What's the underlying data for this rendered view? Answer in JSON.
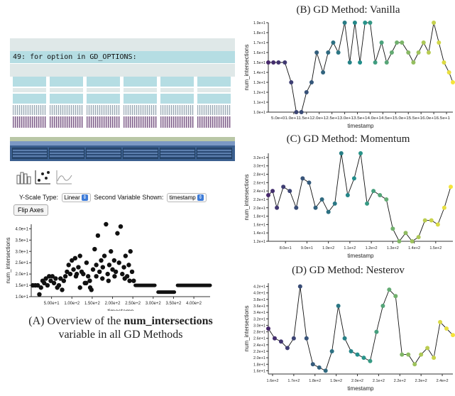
{
  "code_line": "49: for option in GD_OPTIONS:",
  "controls": {
    "yscale_label": "Y-Scale Type:",
    "yscale_value": "Linear",
    "second_var_label": "Second Variable Shown:",
    "second_var_value": "timestamp",
    "flip_label": "Flip Axes"
  },
  "caption": {
    "prefix": "(A) Overview of the ",
    "bold": "num_intersections",
    "line2": "variable in all GD Methods"
  },
  "colors": {
    "panel_teal": "#b5dde3",
    "panel_gray": "#dfe8e8",
    "panel_purple": "#7b5c88",
    "panel_blue": "#3b5f8f",
    "accent_blue": "#3d7bd8"
  },
  "chart_data": [
    {
      "type": "scatter",
      "id": "overview",
      "title": "",
      "xlabel": "timestamp",
      "ylabel": "num_intersections",
      "xlim": [
        0,
        440
      ],
      "ylim": [
        1.0,
        4.2
      ],
      "xticks": [
        {
          "v": 50,
          "l": "5.00e+1"
        },
        {
          "v": 100,
          "l": "1.00e+2"
        },
        {
          "v": 150,
          "l": "1.50e+2"
        },
        {
          "v": 200,
          "l": "2.00e+2"
        },
        {
          "v": 250,
          "l": "2.50e+2"
        },
        {
          "v": 300,
          "l": "3.00e+2"
        },
        {
          "v": 350,
          "l": "3.50e+2"
        },
        {
          "v": 400,
          "l": "4.00e+2"
        }
      ],
      "yticks": [
        {
          "v": 1.0,
          "l": "1.0e+1"
        },
        {
          "v": 1.5,
          "l": "1.5e+1"
        },
        {
          "v": 2.0,
          "l": "2.0e+1"
        },
        {
          "v": 2.5,
          "l": "2.5e+1"
        },
        {
          "v": 3.0,
          "l": "3.0e+1"
        },
        {
          "v": 3.5,
          "l": "3.5e+1"
        },
        {
          "v": 4.0,
          "l": "4.0e+1"
        }
      ],
      "points": [
        [
          4,
          1.5
        ],
        [
          10,
          1.5
        ],
        [
          16,
          1.5
        ],
        [
          20,
          1.1
        ],
        [
          24,
          1.4
        ],
        [
          28,
          1.7
        ],
        [
          32,
          1.6
        ],
        [
          36,
          1.8
        ],
        [
          40,
          1.5
        ],
        [
          44,
          1.9
        ],
        [
          48,
          1.7
        ],
        [
          52,
          1.9
        ],
        [
          56,
          1.6
        ],
        [
          60,
          1.8
        ],
        [
          64,
          1.4
        ],
        [
          68,
          1.5
        ],
        [
          72,
          1.8
        ],
        [
          76,
          1.3
        ],
        [
          80,
          1.7
        ],
        [
          84,
          1.9
        ],
        [
          88,
          2.1
        ],
        [
          92,
          2.4
        ],
        [
          96,
          2.0
        ],
        [
          100,
          2.6
        ],
        [
          104,
          2.2
        ],
        [
          108,
          2.7
        ],
        [
          112,
          2.0
        ],
        [
          116,
          2.3
        ],
        [
          120,
          2.8
        ],
        [
          124,
          2.1
        ],
        [
          128,
          2.0
        ],
        [
          132,
          1.6
        ],
        [
          136,
          2.5
        ],
        [
          140,
          1.9
        ],
        [
          144,
          1.7
        ],
        [
          148,
          1.3
        ],
        [
          152,
          2.2
        ],
        [
          156,
          3.1
        ],
        [
          160,
          2.4
        ],
        [
          164,
          3.7
        ],
        [
          168,
          2.1
        ],
        [
          172,
          2.6
        ],
        [
          176,
          2.3
        ],
        [
          180,
          2.8
        ],
        [
          184,
          4.2
        ],
        [
          188,
          2.0
        ],
        [
          192,
          2.4
        ],
        [
          196,
          3.0
        ],
        [
          200,
          2.2
        ],
        [
          204,
          2.6
        ],
        [
          208,
          2.1
        ],
        [
          212,
          3.8
        ],
        [
          216,
          2.5
        ],
        [
          220,
          4.1
        ],
        [
          224,
          2.0
        ],
        [
          228,
          2.3
        ],
        [
          232,
          2.8
        ],
        [
          236,
          1.9
        ],
        [
          240,
          2.4
        ],
        [
          244,
          3.0
        ],
        [
          248,
          2.1
        ],
        [
          252,
          1.7
        ],
        [
          110,
          1.9
        ],
        [
          120,
          1.4
        ],
        [
          135,
          1.6
        ],
        [
          145,
          1.4
        ],
        [
          160,
          1.9
        ],
        [
          175,
          1.8
        ],
        [
          190,
          1.7
        ],
        [
          205,
          1.9
        ],
        [
          230,
          1.8
        ],
        [
          242,
          1.7
        ]
      ],
      "segments": [
        {
          "x0": 256,
          "x1": 304,
          "y": 1.5
        },
        {
          "x0": 312,
          "x1": 352,
          "y": 1.2
        },
        {
          "x0": 360,
          "x1": 440,
          "y": 1.5
        }
      ],
      "color": "#111111"
    },
    {
      "type": "line",
      "id": "vanilla",
      "title": "(B) GD Method: Vanilla",
      "xlabel": "timestamp",
      "ylabel": "num_intersections",
      "xlim": [
        3,
        17.5
      ],
      "ylim": [
        1.0,
        1.9
      ],
      "xticks": [
        {
          "v": 5,
          "l": "5.0e+0"
        },
        {
          "v": 6,
          "l": "1.0e+1"
        },
        {
          "v": 7,
          "l": "1.5e+1"
        },
        {
          "v": 8,
          "l": "2.0e+1"
        },
        {
          "v": 9,
          "l": "2.5e+1"
        },
        {
          "v": 10,
          "l": "3.0e+1"
        },
        {
          "v": 11,
          "l": "3.5e+1"
        },
        {
          "v": 12,
          "l": "4.0e+1"
        },
        {
          "v": 13,
          "l": "4.5e+1"
        },
        {
          "v": 14,
          "l": "5.0e+1"
        },
        {
          "v": 15,
          "l": "5.5e+1"
        },
        {
          "v": 16,
          "l": "6.0e+1"
        },
        {
          "v": 17,
          "l": "6.5e+1"
        }
      ],
      "xticklabel_row": "5.0e+01.0e+11.5e+12.0e+12.5e+13.0e+13.5e+14.0e+14.5e+15.0e+15.5e+16.0e+16.5e+1",
      "yticks": [
        {
          "v": 1.0,
          "l": "1.0e+1"
        },
        {
          "v": 1.1,
          "l": "1.1e+1"
        },
        {
          "v": 1.2,
          "l": "1.2e+1"
        },
        {
          "v": 1.3,
          "l": "1.3e+1"
        },
        {
          "v": 1.4,
          "l": "1.4e+1"
        },
        {
          "v": 1.5,
          "l": "1.5e+1"
        },
        {
          "v": 1.6,
          "l": "1.6e+1"
        },
        {
          "v": 1.7,
          "l": "1.7e+1"
        },
        {
          "v": 1.8,
          "l": "1.8e+1"
        },
        {
          "v": 1.9,
          "l": "1.9e+1"
        }
      ],
      "x": [
        3,
        3.4,
        3.8,
        4.3,
        4.8,
        5.2,
        5.6,
        6.0,
        6.4,
        6.8,
        7.3,
        7.7,
        8.1,
        8.5,
        9.0,
        9.4,
        9.8,
        10.2,
        10.6,
        11.0,
        11.4,
        11.9,
        12.3,
        12.7,
        13.1,
        13.5,
        14.0,
        14.4,
        14.8,
        15.2,
        15.6,
        16.0,
        16.4,
        16.8,
        17.2,
        17.5
      ],
      "values": [
        1.5,
        1.5,
        1.5,
        1.5,
        1.3,
        1.0,
        1.0,
        1.2,
        1.3,
        1.6,
        1.4,
        1.6,
        1.7,
        1.6,
        1.9,
        1.5,
        1.9,
        1.5,
        1.9,
        1.9,
        1.5,
        1.7,
        1.5,
        1.6,
        1.7,
        1.7,
        1.6,
        1.5,
        1.6,
        1.7,
        1.6,
        1.9,
        1.7,
        1.5,
        1.4,
        1.3
      ],
      "color_start": "#46276b",
      "color_end": "#f5e43a"
    },
    {
      "type": "line",
      "id": "momentum",
      "title": "(C) GD Method: Momentum",
      "xlabel": "timestamp",
      "ylabel": "num_intersections",
      "xlim": [
        72,
        158
      ],
      "ylim": [
        1.2,
        3.3
      ],
      "xticks": [
        {
          "v": 80,
          "l": "8.0e+1"
        },
        {
          "v": 90,
          "l": "9.0e+1"
        },
        {
          "v": 100,
          "l": "1.0e+2"
        },
        {
          "v": 110,
          "l": "1.1e+2"
        },
        {
          "v": 120,
          "l": "1.2e+2"
        },
        {
          "v": 130,
          "l": "1.3e+2"
        },
        {
          "v": 140,
          "l": "1.4e+2"
        },
        {
          "v": 150,
          "l": "1.5e+2"
        }
      ],
      "yticks": [
        {
          "v": 1.2,
          "l": "1.2e+1"
        },
        {
          "v": 1.4,
          "l": "1.4e+1"
        },
        {
          "v": 1.6,
          "l": "1.6e+1"
        },
        {
          "v": 1.8,
          "l": "1.8e+1"
        },
        {
          "v": 2.0,
          "l": "2.0e+1"
        },
        {
          "v": 2.2,
          "l": "2.2e+1"
        },
        {
          "v": 2.4,
          "l": "2.4e+1"
        },
        {
          "v": 2.6,
          "l": "2.6e+1"
        },
        {
          "v": 2.8,
          "l": "2.8e+1"
        },
        {
          "v": 3.0,
          "l": "3.0e+1"
        },
        {
          "v": 3.2,
          "l": "3.2e+1"
        }
      ],
      "x": [
        72,
        74,
        76,
        79,
        82,
        85,
        88,
        91,
        94,
        97,
        100,
        103,
        106,
        109,
        112,
        115,
        118,
        121,
        124,
        127,
        130,
        133,
        136,
        139,
        142,
        145,
        148,
        151,
        154,
        157
      ],
      "values": [
        2.3,
        2.4,
        2.0,
        2.5,
        2.4,
        2.0,
        2.7,
        2.6,
        2.0,
        2.2,
        1.9,
        2.1,
        3.3,
        2.3,
        2.7,
        3.3,
        2.1,
        2.4,
        2.3,
        2.2,
        1.5,
        1.2,
        1.4,
        1.2,
        1.3,
        1.7,
        1.7,
        1.6,
        2.0,
        2.5
      ],
      "color_start": "#46276b",
      "color_end": "#f5e43a"
    },
    {
      "type": "line",
      "id": "nesterov",
      "title": "(D) GD Method: Nesterov",
      "xlabel": "timestamp",
      "ylabel": "num_intersections",
      "xlim": [
        158,
        245
      ],
      "ylim": [
        1.5,
        4.3
      ],
      "xticks": [
        {
          "v": 160,
          "l": "1.6e+2"
        },
        {
          "v": 170,
          "l": "1.7e+2"
        },
        {
          "v": 180,
          "l": "1.8e+2"
        },
        {
          "v": 190,
          "l": "1.9e+2"
        },
        {
          "v": 200,
          "l": "2.0e+2"
        },
        {
          "v": 210,
          "l": "2.1e+2"
        },
        {
          "v": 220,
          "l": "2.2e+2"
        },
        {
          "v": 230,
          "l": "2.3e+2"
        },
        {
          "v": 240,
          "l": "2.4e+2"
        }
      ],
      "yticks": [
        {
          "v": 1.6,
          "l": "1.6e+1"
        },
        {
          "v": 1.8,
          "l": "1.8e+1"
        },
        {
          "v": 2.0,
          "l": "2.0e+1"
        },
        {
          "v": 2.2,
          "l": "2.2e+1"
        },
        {
          "v": 2.4,
          "l": "2.4e+1"
        },
        {
          "v": 2.6,
          "l": "2.6e+1"
        },
        {
          "v": 2.8,
          "l": "2.8e+1"
        },
        {
          "v": 3.0,
          "l": "3.0e+1"
        },
        {
          "v": 3.2,
          "l": "3.2e+1"
        },
        {
          "v": 3.4,
          "l": "3.4e+1"
        },
        {
          "v": 3.6,
          "l": "3.6e+1"
        },
        {
          "v": 3.8,
          "l": "3.8e+1"
        },
        {
          "v": 4.0,
          "l": "4.0e+1"
        },
        {
          "v": 4.2,
          "l": "4.2e+1"
        }
      ],
      "x": [
        158,
        161,
        164,
        167,
        170,
        173,
        176,
        179,
        182,
        185,
        188,
        191,
        194,
        197,
        200,
        203,
        206,
        209,
        212,
        215,
        218,
        221,
        224,
        227,
        230,
        233,
        236,
        239,
        242,
        245
      ],
      "values": [
        2.9,
        2.6,
        2.5,
        2.3,
        2.6,
        4.2,
        2.6,
        1.8,
        1.7,
        1.6,
        2.2,
        3.6,
        2.6,
        2.2,
        2.1,
        2.0,
        1.9,
        2.8,
        3.6,
        4.1,
        3.9,
        2.1,
        2.1,
        1.8,
        2.1,
        2.3,
        2.0,
        3.1,
        2.9,
        2.7
      ],
      "color_start": "#46276b",
      "color_end": "#f5e43a"
    }
  ]
}
